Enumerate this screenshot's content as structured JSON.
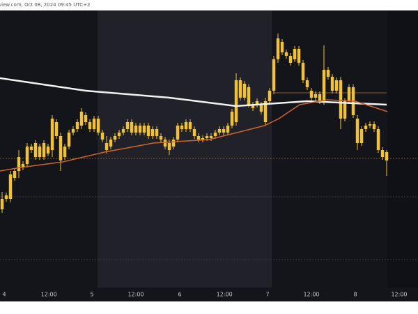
{
  "chart_data": {
    "type": "candlestick",
    "header": "view.com, Oct 08, 2024 09:45 UTC+2",
    "color": "#f2c230",
    "xlim": [
      -0.5,
      99.5
    ],
    "ylim": [
      0,
      395
    ],
    "xticks": [
      {
        "value": 0.5,
        "label": "4"
      },
      {
        "value": 11.2,
        "label": "12:00"
      },
      {
        "value": 21.5,
        "label": "5"
      },
      {
        "value": 32,
        "label": "12:00"
      },
      {
        "value": 42.5,
        "label": "6"
      },
      {
        "value": 53.2,
        "label": "12:00"
      },
      {
        "value": 63.5,
        "label": "7"
      },
      {
        "value": 74,
        "label": "12:00"
      },
      {
        "value": 84.5,
        "label": "8"
      },
      {
        "value": 95,
        "label": "12:00"
      }
    ],
    "open": [
      110,
      125,
      125,
      155,
      165,
      170,
      175,
      195,
      185,
      200,
      185,
      200,
      195,
      235,
      215,
      185,
      200,
      220,
      225,
      230,
      245,
      235,
      225,
      240,
      220,
      205,
      200,
      210,
      215,
      220,
      225,
      235,
      220,
      230,
      220,
      230,
      215,
      225,
      215,
      210,
      205,
      200,
      210,
      230,
      225,
      235,
      225,
      215,
      210,
      212,
      215,
      215,
      220,
      225,
      220,
      230,
      235,
      295,
      270,
      285,
      260,
      260,
      260,
      235,
      265,
      280,
      325,
      350,
      335,
      330,
      325,
      340,
      320,
      295,
      280,
      270,
      275,
      265,
      310,
      300,
      280,
      295,
      240,
      265,
      285,
      240,
      205,
      225,
      230,
      232,
      225,
      195,
      192
    ],
    "high": [
      135,
      134,
      165,
      169,
      195,
      179,
      205,
      204,
      209,
      204,
      209,
      204,
      245,
      239,
      220,
      204,
      224,
      229,
      239,
      255,
      249,
      239,
      244,
      244,
      224,
      215,
      214,
      219,
      224,
      229,
      239,
      239,
      234,
      234,
      234,
      234,
      229,
      229,
      219,
      214,
      210,
      214,
      234,
      234,
      239,
      239,
      229,
      219,
      216,
      219,
      219,
      224,
      229,
      229,
      234,
      254,
      305,
      299,
      294,
      289,
      264,
      269,
      264,
      270,
      284,
      330,
      362,
      354,
      339,
      334,
      344,
      344,
      324,
      299,
      284,
      279,
      279,
      345,
      314,
      304,
      299,
      300,
      269,
      289,
      289,
      245,
      229,
      234,
      236,
      236,
      229,
      199,
      195
    ],
    "low": [
      105,
      121,
      120,
      151,
      155,
      166,
      170,
      191,
      181,
      181,
      181,
      186,
      185,
      211,
      165,
      181,
      196,
      216,
      221,
      225,
      231,
      221,
      221,
      216,
      206,
      190,
      196,
      206,
      211,
      216,
      221,
      216,
      216,
      216,
      216,
      211,
      211,
      211,
      206,
      196,
      188,
      196,
      206,
      221,
      221,
      221,
      211,
      206,
      206,
      208,
      208,
      211,
      216,
      216,
      216,
      226,
      230,
      266,
      266,
      256,
      251,
      256,
      246,
      230,
      261,
      275,
      320,
      331,
      326,
      316,
      321,
      316,
      291,
      281,
      266,
      266,
      261,
      260,
      296,
      276,
      276,
      225,
      236,
      261,
      241,
      195,
      201,
      221,
      226,
      221,
      191,
      181,
      158
    ],
    "close": [
      125,
      130,
      160,
      165,
      185,
      175,
      200,
      200,
      205,
      185,
      205,
      190,
      240,
      215,
      180,
      200,
      220,
      225,
      235,
      250,
      235,
      225,
      240,
      220,
      210,
      195,
      210,
      215,
      220,
      225,
      235,
      220,
      230,
      220,
      230,
      215,
      225,
      215,
      210,
      200,
      195,
      210,
      230,
      225,
      235,
      225,
      215,
      210,
      212,
      215,
      212,
      220,
      225,
      220,
      230,
      250,
      295,
      270,
      290,
      260,
      255,
      265,
      250,
      265,
      280,
      325,
      355,
      335,
      330,
      320,
      340,
      320,
      295,
      285,
      270,
      275,
      265,
      310,
      300,
      280,
      295,
      240,
      265,
      285,
      245,
      205,
      225,
      230,
      232,
      225,
      195,
      185,
      180
    ],
    "lines": [
      {
        "color": "#f2f2f2",
        "x": [
          -0.5,
          20,
          40,
          56,
          73,
          92
        ],
        "values": [
          298,
          280,
          270,
          258,
          265,
          260
        ]
      },
      {
        "color": "#d0642a",
        "x": [
          -0.5,
          4.5,
          14.5,
          24.5,
          36.2,
          49.5,
          56.2,
          62.8,
          66.2,
          71.2,
          77.8,
          84.5,
          92.2
        ],
        "values": [
          165,
          170,
          178,
          192,
          205,
          210,
          220,
          230,
          240,
          260,
          267,
          265,
          250
        ]
      }
    ],
    "price_lines": [
      {
        "value": 183,
        "color": "#8a5a2a"
      },
      {
        "value": 128,
        "color": "#3a3c48"
      },
      {
        "value": 38,
        "color": "#3a3c48"
      },
      {
        "value": 277,
        "color": "#8b5a3c",
        "x": [
          65,
          92
        ]
      }
    ]
  }
}
